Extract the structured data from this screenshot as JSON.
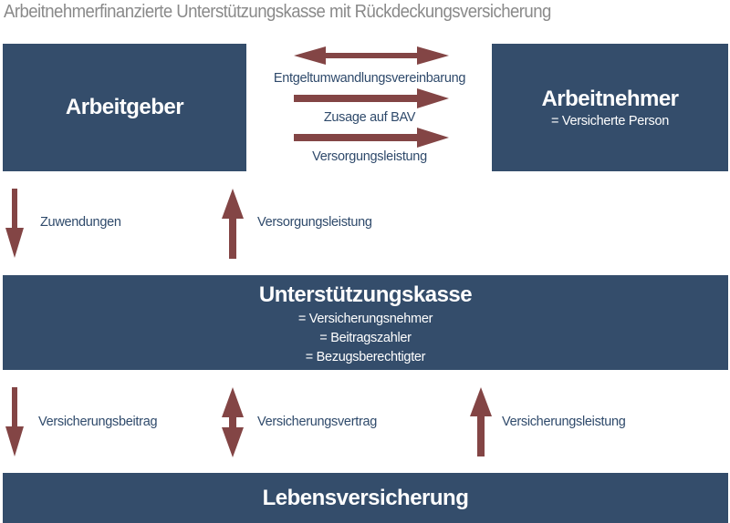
{
  "title": "Arbeitnehmerfinanzierte Unterstützungskasse mit Rückdeckungsversicherung",
  "colors": {
    "box": "#344d6b",
    "arrow": "#834545",
    "label": "#2f4a6b",
    "title": "#8a8a8a"
  },
  "arbeitgeber": {
    "label": "Arbeitgeber"
  },
  "arbeitnehmer": {
    "label": "Arbeitnehmer",
    "sub": "= Versicherte Person"
  },
  "top_arrows": [
    {
      "label": "Entgeltumwandlungsvereinbarung",
      "direction": "both"
    },
    {
      "label": "Zusage auf BAV",
      "direction": "right"
    },
    {
      "label": "Versorgungsleistung",
      "direction": "right"
    }
  ],
  "middle_arrows": [
    {
      "label": "Zuwendungen",
      "direction": "down"
    },
    {
      "label": "Versorgungsleistung",
      "direction": "up"
    }
  ],
  "kasse": {
    "label": "Unterstützungskasse",
    "lines": [
      "= Versicherungsnehmer",
      "= Beitragszahler",
      "= Bezugsberechtigter"
    ]
  },
  "bottom_arrows": [
    {
      "label": "Versicherungsbeitrag",
      "direction": "down"
    },
    {
      "label": "Versicherungsvertrag",
      "direction": "both"
    },
    {
      "label": "Versicherungsleistung",
      "direction": "up"
    }
  ],
  "lebens": {
    "label": "Lebensversicherung"
  }
}
